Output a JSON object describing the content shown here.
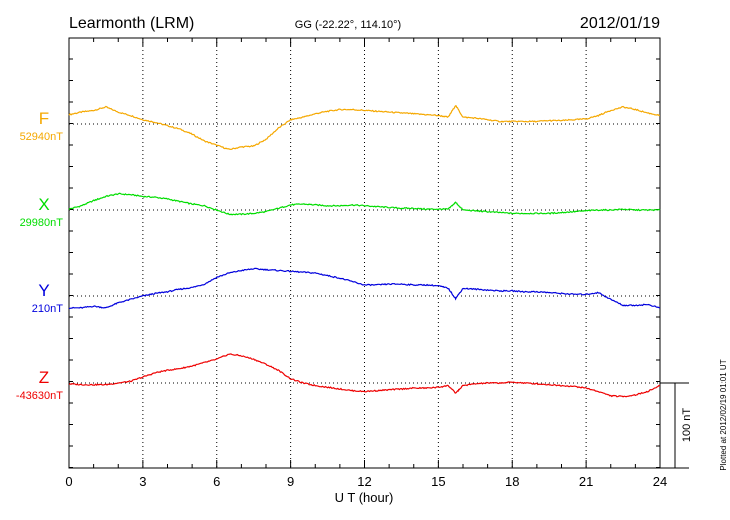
{
  "header": {
    "station": "Learmonth (LRM)",
    "coords": "GG (-22.22°, 114.10°)",
    "date": "2012/01/19"
  },
  "footer": {
    "plotted_note": "Plotted at 2012/02/19 01:01 UT",
    "scale_label": "100 nT"
  },
  "chart_data": {
    "type": "line",
    "xlabel": "U T (hour)",
    "xlim": [
      0,
      24
    ],
    "xticks": [
      0,
      3,
      6,
      9,
      12,
      15,
      18,
      21,
      24
    ],
    "scale_bar_nT": 100,
    "grid": "dotted, vertical every 3 h, horizontal baseline per component",
    "series": [
      {
        "name": "F",
        "baseline_label": "52940nT",
        "baseline_nT": 52940,
        "color": "#f5a800",
        "x": [
          0,
          0.5,
          1,
          1.5,
          2,
          2.5,
          3,
          3.5,
          4,
          4.5,
          5,
          5.5,
          6,
          6.5,
          7,
          7.5,
          8,
          8.5,
          9,
          9.5,
          10,
          10.5,
          11,
          11.5,
          12,
          12.5,
          13,
          13.5,
          14,
          14.5,
          15,
          15.4,
          15.7,
          16,
          16.5,
          17,
          17.5,
          18,
          18.5,
          19,
          19.5,
          20,
          20.5,
          21,
          21.5,
          22,
          22.5,
          23,
          23.5,
          24
        ],
        "values": [
          11,
          14,
          16,
          20,
          14,
          10,
          5,
          2,
          -2,
          -6,
          -12,
          -20,
          -25,
          -30,
          -27,
          -26,
          -18,
          -5,
          5,
          8,
          12,
          15,
          17,
          17,
          16,
          15,
          14,
          13,
          12,
          11,
          10,
          8,
          22,
          8,
          7,
          5,
          3,
          3,
          3,
          3,
          4,
          4,
          5,
          6,
          10,
          16,
          20,
          17,
          13,
          10
        ]
      },
      {
        "name": "X",
        "baseline_label": "29980nT",
        "baseline_nT": 29980,
        "color": "#00dd00",
        "x": [
          0,
          0.5,
          1,
          1.5,
          2,
          2.5,
          3,
          3.5,
          4,
          4.5,
          5,
          5.5,
          6,
          6.5,
          7,
          7.5,
          8,
          8.5,
          9,
          9.5,
          10,
          10.5,
          11,
          11.5,
          12,
          12.5,
          13,
          13.5,
          14,
          14.5,
          15,
          15.4,
          15.7,
          16,
          16.5,
          17,
          17.5,
          18,
          18.5,
          19,
          19.5,
          20,
          20.5,
          21,
          21.5,
          22,
          22.5,
          23,
          23.5,
          24
        ],
        "values": [
          1,
          5,
          11,
          16,
          19,
          18,
          16,
          15,
          13,
          10,
          7,
          5,
          0,
          -5,
          -5,
          -4,
          -2,
          2,
          6,
          7,
          6,
          5,
          5,
          6,
          5,
          4,
          3,
          2,
          2,
          1,
          1,
          1,
          9,
          0,
          -1,
          -2,
          -3,
          -4,
          -4,
          -4,
          -4,
          -3,
          -2,
          -1,
          0,
          0,
          1,
          0,
          0,
          0
        ]
      },
      {
        "name": "Y",
        "baseline_label": "210nT",
        "baseline_nT": 210,
        "color": "#0000dd",
        "x": [
          0,
          0.5,
          1,
          1.5,
          2,
          2.5,
          3,
          3.5,
          4,
          4.5,
          5,
          5.5,
          6,
          6.5,
          7,
          7.5,
          8,
          8.5,
          9,
          9.5,
          10,
          10.5,
          11,
          11.5,
          12,
          12.5,
          13,
          13.5,
          14,
          14.5,
          15,
          15.4,
          15.7,
          16,
          16.5,
          17,
          17.5,
          18,
          18.5,
          19,
          19.5,
          20,
          20.5,
          21,
          21.5,
          22,
          22.5,
          23,
          23.5,
          24
        ],
        "values": [
          -14,
          -14,
          -12,
          -14,
          -8,
          -4,
          0,
          3,
          5,
          8,
          10,
          14,
          22,
          27,
          30,
          32,
          31,
          30,
          29,
          28,
          27,
          24,
          21,
          17,
          13,
          13,
          14,
          14,
          13,
          13,
          12,
          9,
          -3,
          9,
          8,
          7,
          6,
          6,
          5,
          5,
          4,
          3,
          2,
          2,
          4,
          -4,
          -11,
          -11,
          -10,
          -14
        ]
      },
      {
        "name": "Z",
        "baseline_label": "-43630nT",
        "baseline_nT": -43630,
        "color": "#ee0000",
        "x": [
          0,
          0.5,
          1,
          1.5,
          2,
          2.5,
          3,
          3.5,
          4,
          4.5,
          5,
          5.5,
          6,
          6.5,
          7,
          7.5,
          8,
          8.5,
          9,
          9.5,
          10,
          10.5,
          11,
          11.5,
          12,
          12.5,
          13,
          13.5,
          14,
          14.5,
          15,
          15.4,
          15.7,
          16,
          16.5,
          17,
          17.5,
          18,
          18.5,
          19,
          19.5,
          20,
          20.5,
          21,
          21.5,
          22,
          22.5,
          23,
          23.5,
          24
        ],
        "values": [
          -1,
          -2,
          -2,
          -2,
          0,
          2,
          7,
          12,
          15,
          17,
          20,
          24,
          28,
          34,
          32,
          28,
          22,
          15,
          5,
          0,
          -3,
          -5,
          -7,
          -9,
          -10,
          -9,
          -8,
          -7,
          -6,
          -6,
          -5,
          -3,
          -12,
          -3,
          -1,
          0,
          0,
          1,
          0,
          -1,
          -2,
          -3,
          -4,
          -6,
          -10,
          -15,
          -16,
          -14,
          -10,
          -3
        ]
      }
    ]
  }
}
